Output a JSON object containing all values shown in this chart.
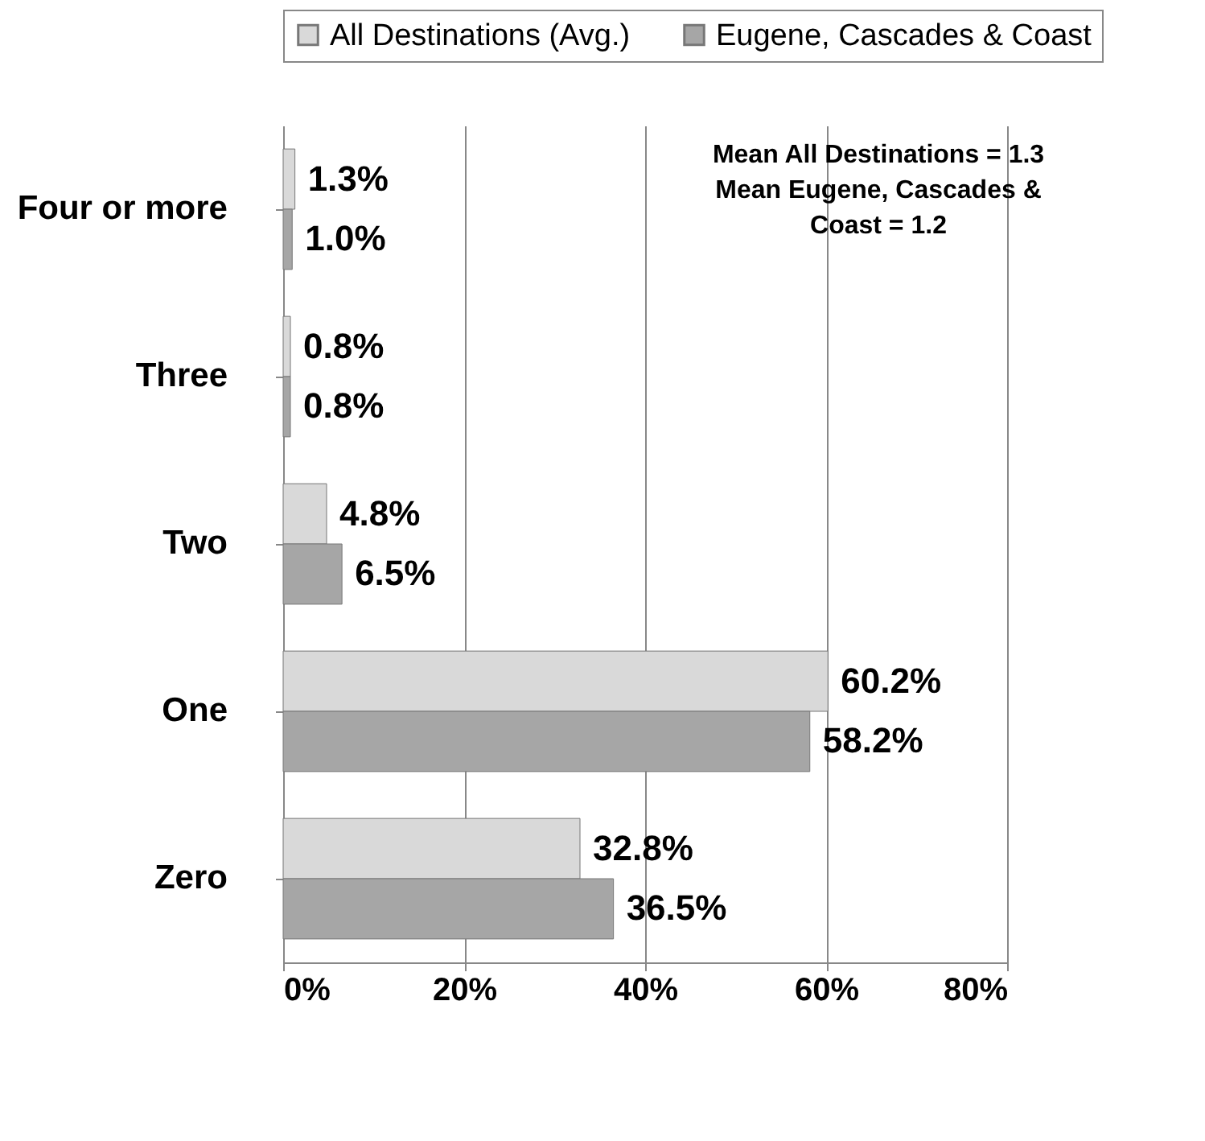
{
  "chart_data": {
    "type": "bar",
    "orientation": "horizontal",
    "categories": [
      "Four or more",
      "Three",
      "Two",
      "One",
      "Zero"
    ],
    "series": [
      {
        "name": "All Destinations (Avg.)",
        "color": "#d9d9d9",
        "values": [
          1.3,
          0.8,
          4.8,
          60.2,
          32.8
        ],
        "value_labels": [
          "1.3%",
          "0.8%",
          "4.8%",
          "60.2%",
          "32.8%"
        ]
      },
      {
        "name": "Eugene, Cascades & Coast",
        "color": "#a6a6a6",
        "values": [
          1.0,
          0.8,
          6.5,
          58.2,
          36.5
        ],
        "value_labels": [
          "1.0%",
          "0.8%",
          "6.5%",
          "58.2%",
          "36.5%"
        ]
      }
    ],
    "xlim": [
      0,
      80
    ],
    "xticks": [
      {
        "value": 0,
        "label": "0%"
      },
      {
        "value": 20,
        "label": "20%"
      },
      {
        "value": 40,
        "label": "40%"
      },
      {
        "value": 60,
        "label": "60%"
      },
      {
        "value": 80,
        "label": "80%"
      }
    ],
    "grid": "x",
    "legend": "top",
    "annotations": [
      "Mean All Destinations = 1.3\nMean Eugene, Cascades &\nCoast = 1.2"
    ]
  }
}
